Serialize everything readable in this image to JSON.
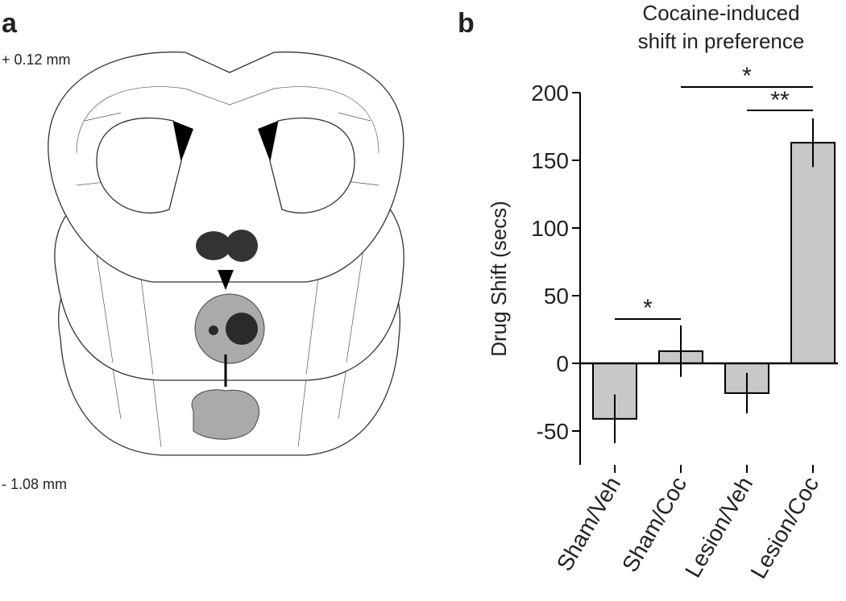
{
  "panel_a": {
    "label": "a",
    "top_label": "+ 0.12 mm",
    "bottom_label": "- 1.08 mm"
  },
  "chart_data": {
    "type": "bar",
    "panel_label": "b",
    "title": [
      "Cocaine-induced",
      "shift in preference"
    ],
    "y_label": "Drug Shift (secs)",
    "categories": [
      "Sham/Veh",
      "Sham/Coc",
      "Lesion/Veh",
      "Lesion/Coc"
    ],
    "values": [
      -41,
      9,
      -22,
      163
    ],
    "errors": [
      18,
      19,
      15,
      18
    ],
    "color": "#c8c8c8",
    "ylim": [
      -75,
      200
    ],
    "yticks": [
      -50,
      0,
      50,
      100,
      150,
      200
    ],
    "significance": [
      "*",
      "*",
      "**"
    ]
  }
}
